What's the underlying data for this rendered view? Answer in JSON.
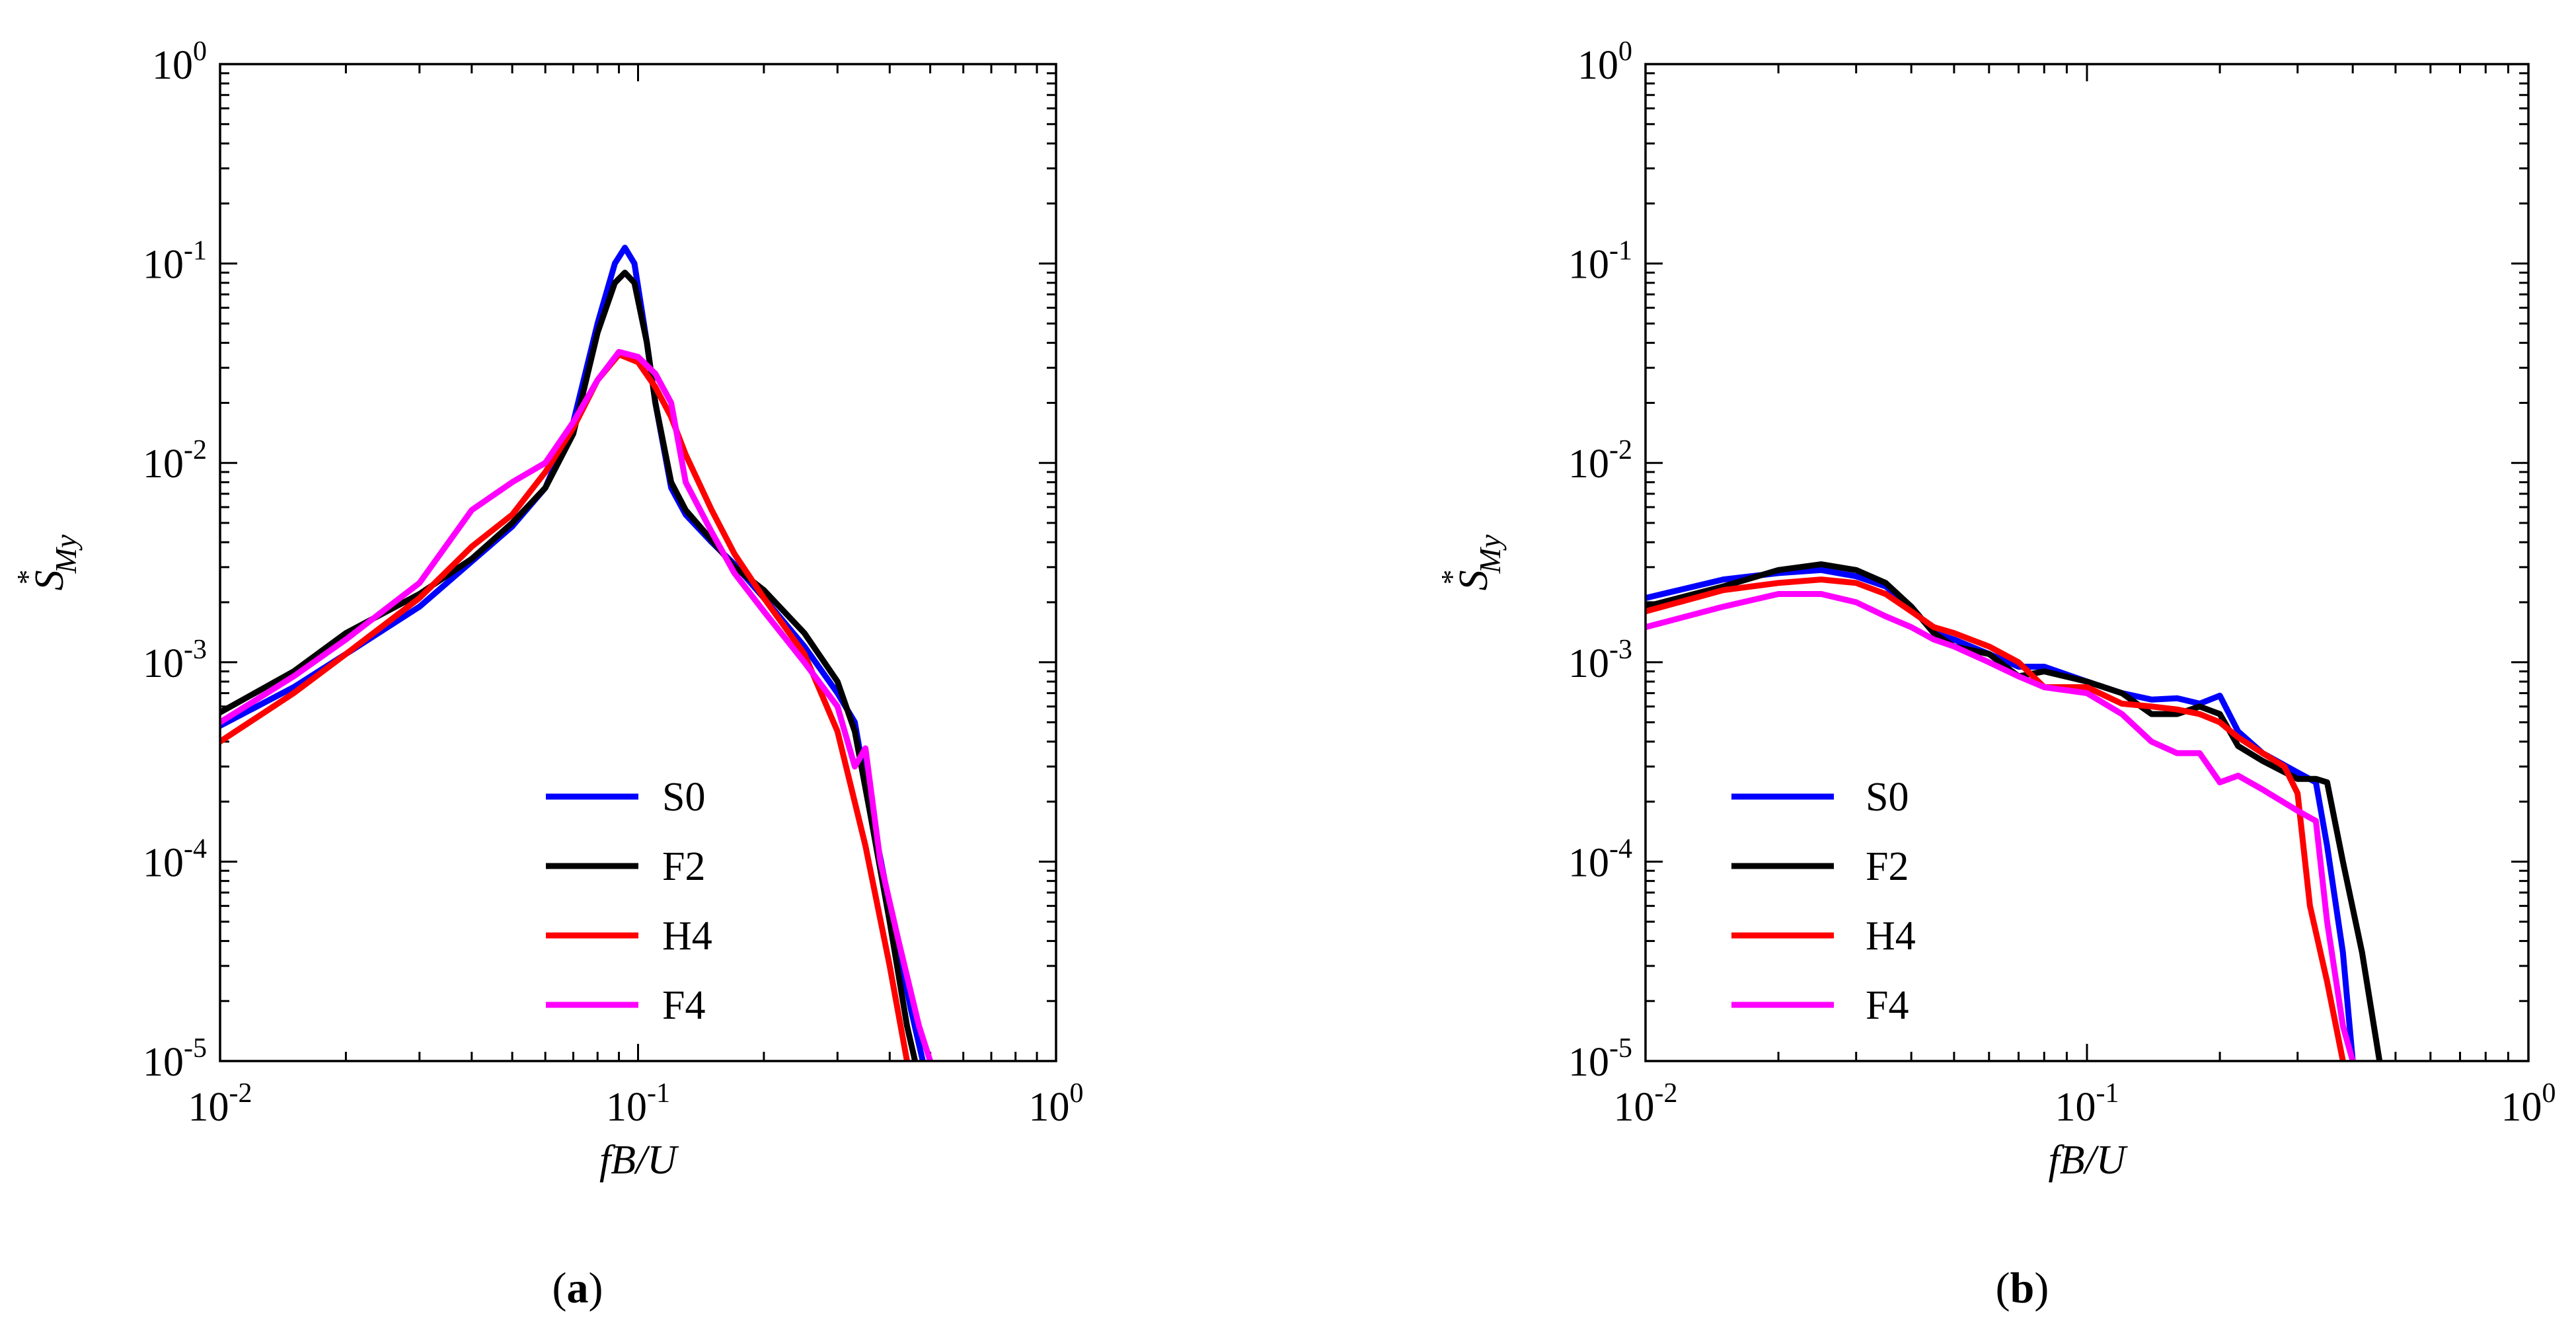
{
  "chart_data": [
    {
      "type": "line",
      "panel": "a",
      "caption_open": "(",
      "caption_letter": "a",
      "caption_close": ")",
      "xlabel": "fB/U",
      "ylabel_main": "S",
      "ylabel_sup": "*",
      "ylabel_sub": "My",
      "xscale": "log",
      "yscale": "log",
      "xlim": [
        0.01,
        1
      ],
      "ylim": [
        1e-05,
        1
      ],
      "x_tick_labels": [
        {
          "base": "10",
          "exp": "-2"
        },
        {
          "base": "10",
          "exp": "-1"
        },
        {
          "base": "10",
          "exp": "0"
        }
      ],
      "y_tick_labels": [
        {
          "base": "10",
          "exp": "0"
        },
        {
          "base": "10",
          "exp": "-1"
        },
        {
          "base": "10",
          "exp": "-2"
        },
        {
          "base": "10",
          "exp": "-3"
        },
        {
          "base": "10",
          "exp": "-4"
        },
        {
          "base": "10",
          "exp": "-5"
        }
      ],
      "legend_position": "lower-right",
      "series": [
        {
          "name": "S0",
          "color": "#0000ff",
          "points": [
            [
              0.01,
              0.00048
            ],
            [
              0.015,
              0.00075
            ],
            [
              0.02,
              0.0011
            ],
            [
              0.03,
              0.0019
            ],
            [
              0.04,
              0.0032
            ],
            [
              0.05,
              0.0048
            ],
            [
              0.06,
              0.0075
            ],
            [
              0.07,
              0.016
            ],
            [
              0.08,
              0.05
            ],
            [
              0.088,
              0.1
            ],
            [
              0.093,
              0.12
            ],
            [
              0.098,
              0.1
            ],
            [
              0.105,
              0.04
            ],
            [
              0.11,
              0.02
            ],
            [
              0.12,
              0.0075
            ],
            [
              0.13,
              0.0055
            ],
            [
              0.15,
              0.004
            ],
            [
              0.17,
              0.0031
            ],
            [
              0.2,
              0.0021
            ],
            [
              0.25,
              0.0012
            ],
            [
              0.3,
              0.0007
            ],
            [
              0.33,
              0.0005
            ],
            [
              0.35,
              0.00025
            ],
            [
              0.4,
              6e-05
            ],
            [
              0.45,
              1.8e-05
            ],
            [
              0.48,
              1e-05
            ]
          ]
        },
        {
          "name": "F2",
          "color": "#000000",
          "points": [
            [
              0.01,
              0.00056
            ],
            [
              0.015,
              0.0009
            ],
            [
              0.02,
              0.0014
            ],
            [
              0.03,
              0.0022
            ],
            [
              0.04,
              0.0033
            ],
            [
              0.05,
              0.005
            ],
            [
              0.06,
              0.0075
            ],
            [
              0.07,
              0.014
            ],
            [
              0.08,
              0.045
            ],
            [
              0.088,
              0.08
            ],
            [
              0.093,
              0.09
            ],
            [
              0.098,
              0.08
            ],
            [
              0.105,
              0.04
            ],
            [
              0.11,
              0.02
            ],
            [
              0.12,
              0.008
            ],
            [
              0.13,
              0.0058
            ],
            [
              0.15,
              0.0041
            ],
            [
              0.17,
              0.003
            ],
            [
              0.2,
              0.0023
            ],
            [
              0.25,
              0.0014
            ],
            [
              0.3,
              0.0008
            ],
            [
              0.33,
              0.00045
            ],
            [
              0.36,
              0.00017
            ],
            [
              0.4,
              5e-05
            ],
            [
              0.44,
              1.5e-05
            ],
            [
              0.46,
              1e-05
            ]
          ]
        },
        {
          "name": "H4",
          "color": "#ff0000",
          "points": [
            [
              0.01,
              0.0004
            ],
            [
              0.015,
              0.0007
            ],
            [
              0.02,
              0.0011
            ],
            [
              0.03,
              0.0021
            ],
            [
              0.04,
              0.0038
            ],
            [
              0.05,
              0.0055
            ],
            [
              0.06,
              0.009
            ],
            [
              0.07,
              0.015
            ],
            [
              0.08,
              0.026
            ],
            [
              0.09,
              0.035
            ],
            [
              0.1,
              0.032
            ],
            [
              0.11,
              0.024
            ],
            [
              0.12,
              0.017
            ],
            [
              0.13,
              0.011
            ],
            [
              0.15,
              0.0058
            ],
            [
              0.17,
              0.0035
            ],
            [
              0.2,
              0.0021
            ],
            [
              0.25,
              0.0011
            ],
            [
              0.3,
              0.00045
            ],
            [
              0.35,
              0.00012
            ],
            [
              0.4,
              3e-05
            ],
            [
              0.44,
              1e-05
            ]
          ]
        },
        {
          "name": "F4",
          "color": "#ff00ff",
          "points": [
            [
              0.01,
              0.0005
            ],
            [
              0.015,
              0.00085
            ],
            [
              0.02,
              0.0013
            ],
            [
              0.03,
              0.0025
            ],
            [
              0.04,
              0.0058
            ],
            [
              0.05,
              0.008
            ],
            [
              0.06,
              0.01
            ],
            [
              0.07,
              0.016
            ],
            [
              0.08,
              0.026
            ],
            [
              0.09,
              0.036
            ],
            [
              0.1,
              0.034
            ],
            [
              0.11,
              0.028
            ],
            [
              0.12,
              0.02
            ],
            [
              0.13,
              0.008
            ],
            [
              0.15,
              0.0045
            ],
            [
              0.17,
              0.0028
            ],
            [
              0.2,
              0.0018
            ],
            [
              0.25,
              0.001
            ],
            [
              0.3,
              0.0006
            ],
            [
              0.33,
              0.0003
            ],
            [
              0.35,
              0.00037
            ],
            [
              0.38,
              0.0001
            ],
            [
              0.42,
              4e-05
            ],
            [
              0.47,
              1.5e-05
            ],
            [
              0.5,
              1e-05
            ]
          ]
        }
      ]
    },
    {
      "type": "line",
      "panel": "b",
      "caption_open": "(",
      "caption_letter": "b",
      "caption_close": ")",
      "xlabel": "fB/U",
      "ylabel_main": "S",
      "ylabel_sup": "*",
      "ylabel_sub": "My",
      "xscale": "log",
      "yscale": "log",
      "xlim": [
        0.01,
        1
      ],
      "ylim": [
        1e-05,
        1
      ],
      "x_tick_labels": [
        {
          "base": "10",
          "exp": "-2"
        },
        {
          "base": "10",
          "exp": "-1"
        },
        {
          "base": "10",
          "exp": "0"
        }
      ],
      "y_tick_labels": [
        {
          "base": "10",
          "exp": "0"
        },
        {
          "base": "10",
          "exp": "-1"
        },
        {
          "base": "10",
          "exp": "-2"
        },
        {
          "base": "10",
          "exp": "-3"
        },
        {
          "base": "10",
          "exp": "-4"
        },
        {
          "base": "10",
          "exp": "-5"
        }
      ],
      "legend_position": "lower-left",
      "series": [
        {
          "name": "S0",
          "color": "#0000ff",
          "points": [
            [
              0.01,
              0.0021
            ],
            [
              0.015,
              0.0026
            ],
            [
              0.02,
              0.0028
            ],
            [
              0.025,
              0.0029
            ],
            [
              0.03,
              0.0027
            ],
            [
              0.035,
              0.0024
            ],
            [
              0.04,
              0.0019
            ],
            [
              0.045,
              0.0014
            ],
            [
              0.05,
              0.0013
            ],
            [
              0.06,
              0.0011
            ],
            [
              0.07,
              0.00095
            ],
            [
              0.08,
              0.00095
            ],
            [
              0.1,
              0.0008
            ],
            [
              0.12,
              0.0007
            ],
            [
              0.14,
              0.00065
            ],
            [
              0.16,
              0.00066
            ],
            [
              0.18,
              0.00062
            ],
            [
              0.2,
              0.00068
            ],
            [
              0.22,
              0.00045
            ],
            [
              0.25,
              0.00035
            ],
            [
              0.3,
              0.00028
            ],
            [
              0.33,
              0.00025
            ],
            [
              0.35,
              0.00012
            ],
            [
              0.38,
              3.5e-05
            ],
            [
              0.4,
              1e-05
            ]
          ]
        },
        {
          "name": "F2",
          "color": "#000000",
          "points": [
            [
              0.01,
              0.0019
            ],
            [
              0.015,
              0.0024
            ],
            [
              0.02,
              0.0029
            ],
            [
              0.025,
              0.0031
            ],
            [
              0.03,
              0.0029
            ],
            [
              0.035,
              0.0025
            ],
            [
              0.04,
              0.0019
            ],
            [
              0.045,
              0.0014
            ],
            [
              0.05,
              0.0012
            ],
            [
              0.06,
              0.0011
            ],
            [
              0.07,
              0.00085
            ],
            [
              0.08,
              0.0009
            ],
            [
              0.1,
              0.0008
            ],
            [
              0.12,
              0.0007
            ],
            [
              0.14,
              0.00055
            ],
            [
              0.16,
              0.00055
            ],
            [
              0.18,
              0.0006
            ],
            [
              0.2,
              0.00055
            ],
            [
              0.22,
              0.00038
            ],
            [
              0.25,
              0.00032
            ],
            [
              0.3,
              0.00026
            ],
            [
              0.33,
              0.00026
            ],
            [
              0.35,
              0.00025
            ],
            [
              0.38,
              0.0001
            ],
            [
              0.42,
              3.5e-05
            ],
            [
              0.46,
              1e-05
            ]
          ]
        },
        {
          "name": "H4",
          "color": "#ff0000",
          "points": [
            [
              0.01,
              0.0018
            ],
            [
              0.015,
              0.0023
            ],
            [
              0.02,
              0.0025
            ],
            [
              0.025,
              0.0026
            ],
            [
              0.03,
              0.0025
            ],
            [
              0.035,
              0.0022
            ],
            [
              0.04,
              0.0018
            ],
            [
              0.045,
              0.0015
            ],
            [
              0.05,
              0.0014
            ],
            [
              0.06,
              0.0012
            ],
            [
              0.07,
              0.001
            ],
            [
              0.08,
              0.00075
            ],
            [
              0.1,
              0.00075
            ],
            [
              0.12,
              0.00062
            ],
            [
              0.14,
              0.0006
            ],
            [
              0.16,
              0.00058
            ],
            [
              0.18,
              0.00055
            ],
            [
              0.2,
              0.0005
            ],
            [
              0.22,
              0.00042
            ],
            [
              0.25,
              0.00035
            ],
            [
              0.28,
              0.0003
            ],
            [
              0.3,
              0.00022
            ],
            [
              0.32,
              6e-05
            ],
            [
              0.35,
              2.5e-05
            ],
            [
              0.38,
              1e-05
            ]
          ]
        },
        {
          "name": "F4",
          "color": "#ff00ff",
          "points": [
            [
              0.01,
              0.0015
            ],
            [
              0.015,
              0.0019
            ],
            [
              0.02,
              0.0022
            ],
            [
              0.025,
              0.0022
            ],
            [
              0.03,
              0.002
            ],
            [
              0.035,
              0.0017
            ],
            [
              0.04,
              0.0015
            ],
            [
              0.045,
              0.0013
            ],
            [
              0.05,
              0.0012
            ],
            [
              0.06,
              0.001
            ],
            [
              0.07,
              0.00085
            ],
            [
              0.08,
              0.00075
            ],
            [
              0.1,
              0.0007
            ],
            [
              0.12,
              0.00055
            ],
            [
              0.14,
              0.0004
            ],
            [
              0.16,
              0.00035
            ],
            [
              0.18,
              0.00035
            ],
            [
              0.2,
              0.00025
            ],
            [
              0.22,
              0.00027
            ],
            [
              0.25,
              0.00023
            ],
            [
              0.3,
              0.00018
            ],
            [
              0.33,
              0.00016
            ],
            [
              0.35,
              5e-05
            ],
            [
              0.38,
              1.5e-05
            ],
            [
              0.4,
              1e-05
            ]
          ]
        }
      ]
    }
  ]
}
